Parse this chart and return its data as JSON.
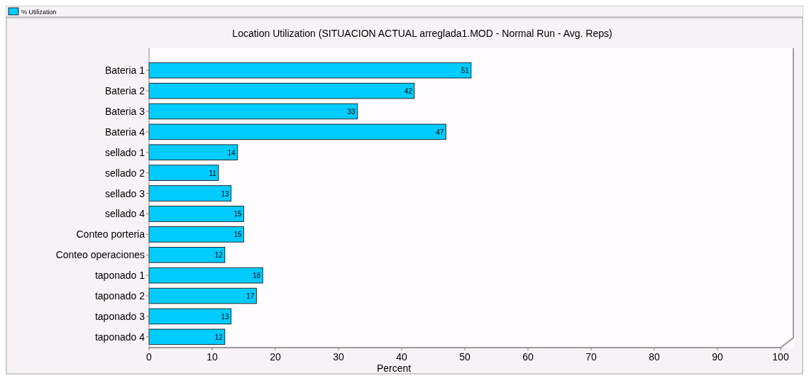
{
  "chart_data": {
    "type": "bar",
    "orientation": "horizontal",
    "title": "Location Utilization (SITUACION ACTUAL arreglada1.MOD - Normal Run - Avg. Reps)",
    "xlabel": "Percent",
    "categories": [
      "Bateria 1",
      "Bateria 2",
      "Bateria 3",
      "Bateria 4",
      "sellado 1",
      "sellado 2",
      "sellado 3",
      "sellado 4",
      "Conteo porteria",
      "Conteo operaciones",
      "taponado 1",
      "taponado 2",
      "taponado 3",
      "taponado 4"
    ],
    "series": [
      {
        "name": "% Utilization",
        "color": "#00ccff",
        "values": [
          51,
          42,
          33,
          47,
          14,
          11,
          13,
          15,
          15,
          12,
          18,
          17,
          13,
          12
        ]
      }
    ],
    "xlim": [
      0,
      100
    ],
    "xticks": [
      0,
      10,
      20,
      30,
      40,
      50,
      60,
      70,
      80,
      90,
      100
    ],
    "data_labels": true,
    "legend": "top left",
    "grid": false
  }
}
